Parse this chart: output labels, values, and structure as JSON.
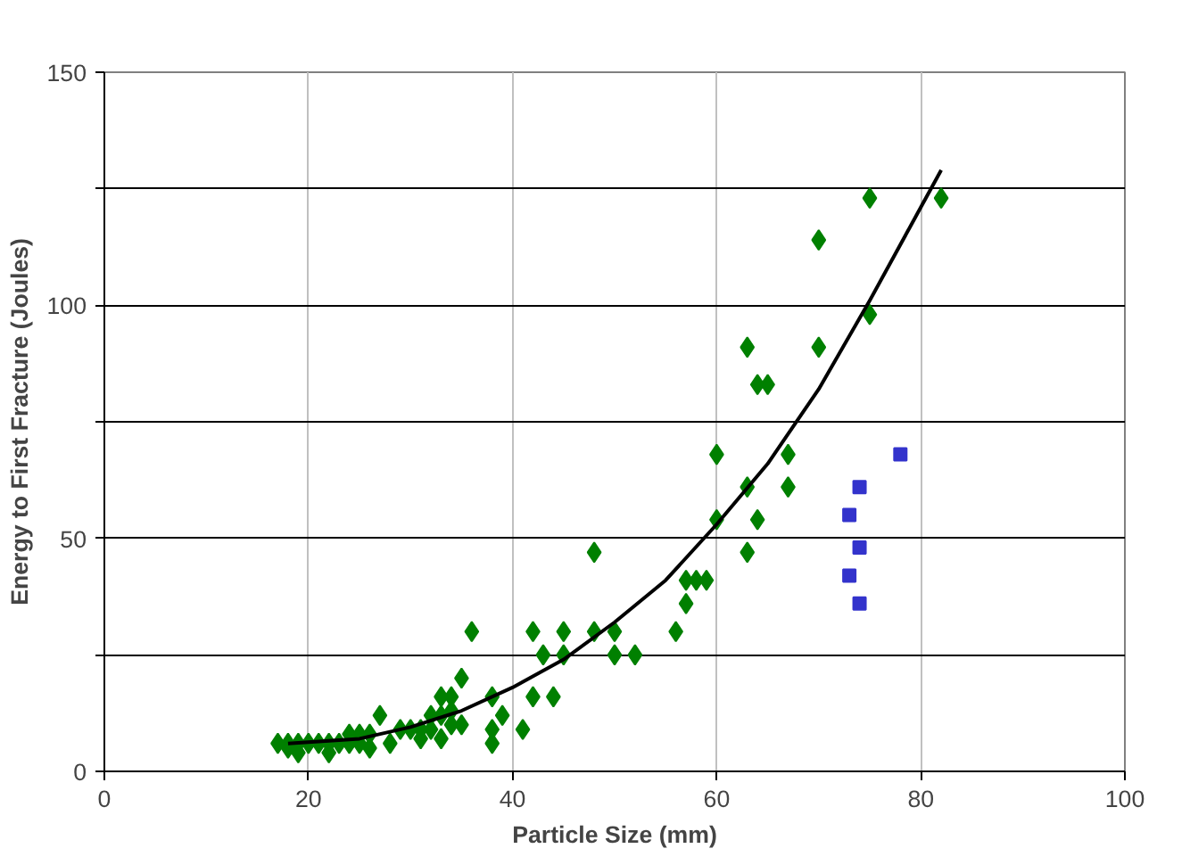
{
  "chart_data": {
    "type": "scatter",
    "xlabel": "Particle Size (mm)",
    "ylabel": "Energy to First Fracture (Joules)",
    "xlim": [
      0,
      100
    ],
    "ylim": [
      0,
      150
    ],
    "xticks": [
      0,
      20,
      40,
      60,
      80,
      100
    ],
    "yticks": [
      0,
      {
        "value": 25,
        "label": null
      },
      50,
      {
        "value": 75,
        "label": null
      },
      100,
      {
        "value": 125,
        "label": null
      },
      150
    ],
    "grid": true,
    "series": [
      {
        "color": "#008000",
        "marker": "diamond",
        "x": [
          17,
          18,
          18,
          19,
          19,
          20,
          21,
          22,
          22,
          23,
          24,
          24,
          25,
          25,
          26,
          26,
          27,
          28,
          29,
          30,
          31,
          31,
          32,
          32,
          33,
          33,
          33,
          34,
          34,
          34,
          35,
          35,
          36,
          38,
          38,
          38,
          39,
          41,
          42,
          42,
          43,
          44,
          45,
          45,
          48,
          48,
          50,
          50,
          52,
          56,
          57,
          57,
          58,
          59,
          60,
          60,
          63,
          63,
          63,
          64,
          64,
          65,
          67,
          67,
          70,
          70,
          75,
          75,
          82
        ],
        "values": [
          6,
          5,
          6,
          4,
          6,
          6,
          6,
          4,
          6,
          6,
          6,
          8,
          6,
          8,
          5,
          8,
          12,
          6,
          9,
          9,
          7,
          9,
          9,
          12,
          7,
          12,
          16,
          10,
          13,
          16,
          10,
          20,
          30,
          9,
          6,
          16,
          12,
          9,
          16,
          30,
          25,
          16,
          25,
          30,
          30,
          47,
          25,
          30,
          25,
          30,
          36,
          41,
          41,
          41,
          54,
          68,
          47,
          61,
          91,
          54,
          83,
          83,
          61,
          68,
          91,
          114,
          98,
          123,
          123
        ]
      },
      {
        "color": "#3333cc",
        "marker": "square",
        "x": [
          73,
          73,
          74,
          74,
          74,
          78
        ],
        "values": [
          42,
          55,
          36,
          48,
          61,
          68
        ]
      },
      {
        "type": "line",
        "color": "#000000",
        "x": [
          18,
          25,
          30,
          35,
          40,
          45,
          50,
          55,
          60,
          65,
          70,
          75,
          80,
          82
        ],
        "values": [
          6,
          7,
          9.5,
          13,
          18,
          24,
          32,
          41,
          53,
          66,
          82,
          101,
          121,
          129
        ]
      }
    ]
  }
}
